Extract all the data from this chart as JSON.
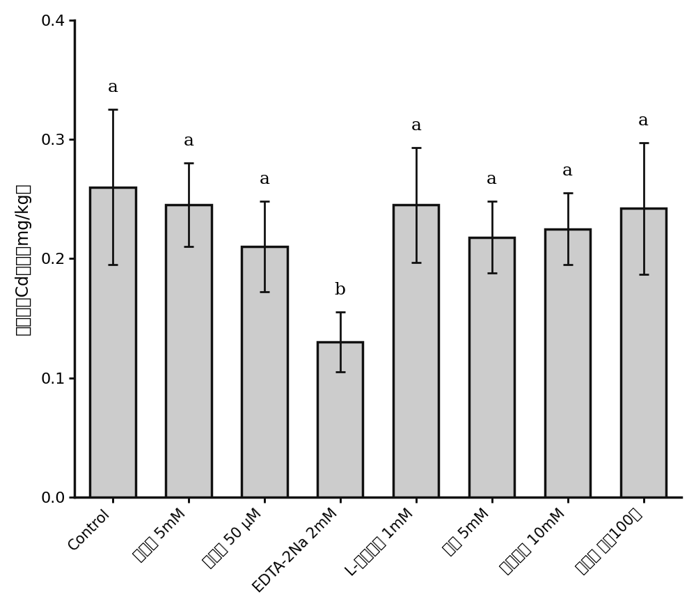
{
  "categories": [
    "Control",
    "氯化镧 5mM",
    "硝普钠 50 μM",
    "EDTA-2Na 2mM",
    "L-半胱氨酸 1mM",
    "硼酸 5mM",
    "硫酸亚铁 10mM",
    "叶面肥 稀释100倍"
  ],
  "values": [
    0.26,
    0.245,
    0.21,
    0.13,
    0.245,
    0.218,
    0.225,
    0.242
  ],
  "errors": [
    0.065,
    0.035,
    0.038,
    0.025,
    0.048,
    0.03,
    0.03,
    0.055
  ],
  "significance": [
    "a",
    "a",
    "a",
    "b",
    "a",
    "a",
    "a",
    "a"
  ],
  "bar_color": "#cccccc",
  "bar_edgecolor": "#111111",
  "ylabel": "小麦籽粒Cd含量（mg/kg）",
  "ylim": [
    0,
    0.4
  ],
  "yticks": [
    0.0,
    0.1,
    0.2,
    0.3,
    0.4
  ],
  "background_color": "#ffffff",
  "bar_linewidth": 2.5,
  "axis_linewidth": 2.5,
  "errorbar_linewidth": 2.0,
  "errorbar_capsize": 5,
  "errorbar_capthick": 2.0
}
